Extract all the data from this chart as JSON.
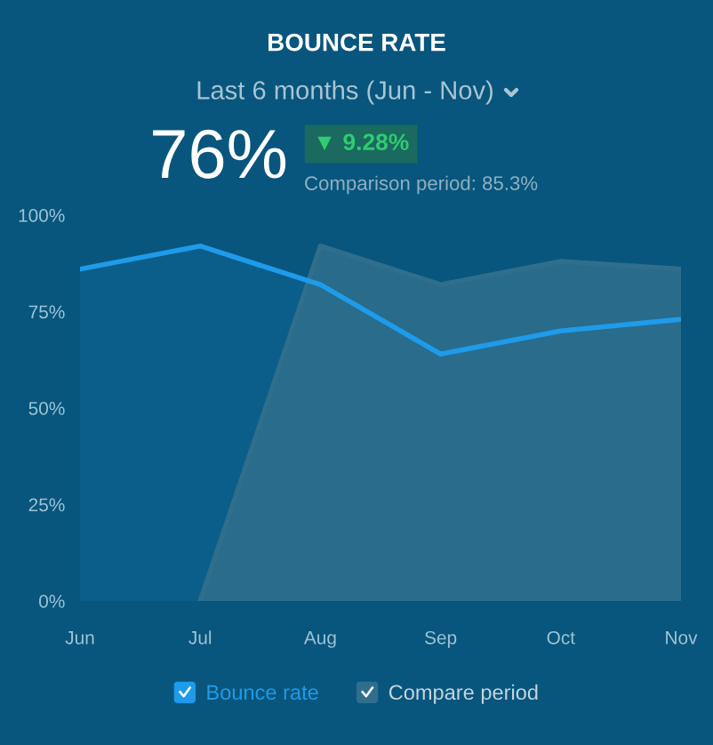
{
  "chart_data": {
    "type": "area",
    "title": "BOUNCE RATE",
    "subtitle": "Last 6 months (Jun - Nov)",
    "annotations": [
      "76%",
      "▼ 9.28%",
      "Comparison period: 85.3%"
    ],
    "categories": [
      "Jun",
      "Jul",
      "Aug",
      "Sep",
      "Oct",
      "Nov"
    ],
    "series": [
      {
        "name": "Bounce rate",
        "color": "#1e9bea",
        "values": [
          86,
          92,
          82,
          64,
          70,
          73
        ]
      },
      {
        "name": "Compare period",
        "color": "#2f6e8c",
        "values": [
          null,
          0,
          92,
          82,
          88,
          86
        ]
      }
    ],
    "ylim": [
      0,
      100
    ],
    "yticks": [
      {
        "value": 0,
        "label": "0%"
      },
      {
        "value": 25,
        "label": "25%"
      },
      {
        "value": 50,
        "label": "50%"
      },
      {
        "value": 75,
        "label": "75%"
      },
      {
        "value": 100,
        "label": "100%"
      }
    ],
    "grid": false,
    "legend": "bottom",
    "marker": "none"
  }
}
